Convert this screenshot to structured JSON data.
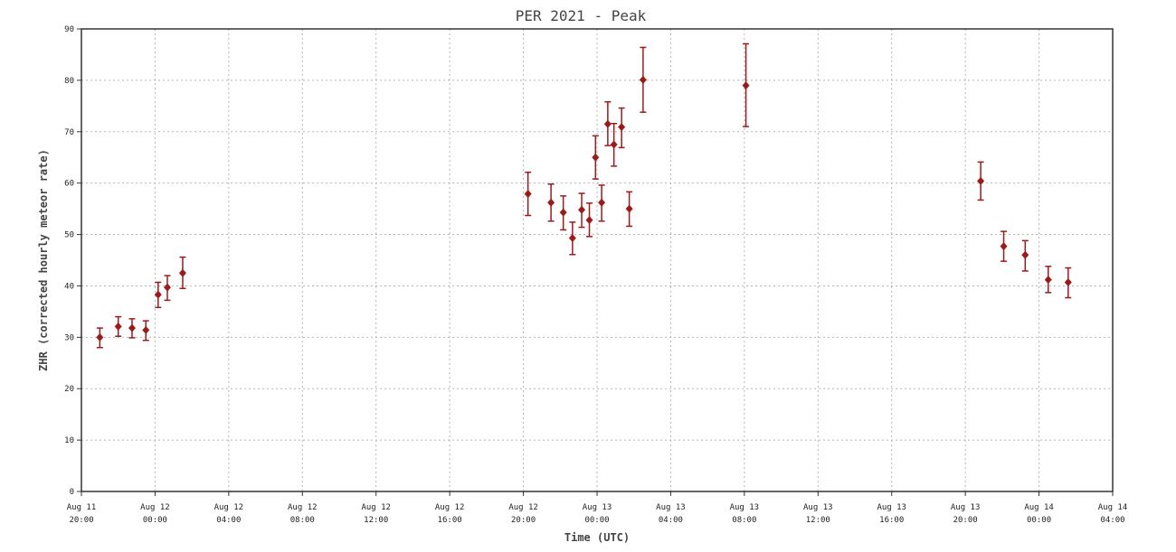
{
  "chart_data": {
    "type": "scatter",
    "title": "PER 2021 - Peak",
    "xlabel": "Time (UTC)",
    "ylabel": "ZHR (corrected hourly meteor rate)",
    "ylim": [
      0,
      90
    ],
    "yticks": [
      0,
      10,
      20,
      30,
      40,
      50,
      60,
      70,
      80,
      90
    ],
    "xlim": [
      "2021-08-11 20:00",
      "2021-08-14 04:00"
    ],
    "xticks": [
      {
        "time": "2021-08-11 20:00",
        "line1": "Aug 11",
        "line2": "20:00"
      },
      {
        "time": "2021-08-12 00:00",
        "line1": "Aug 12",
        "line2": "00:00"
      },
      {
        "time": "2021-08-12 04:00",
        "line1": "Aug 12",
        "line2": "04:00"
      },
      {
        "time": "2021-08-12 08:00",
        "line1": "Aug 12",
        "line2": "08:00"
      },
      {
        "time": "2021-08-12 12:00",
        "line1": "Aug 12",
        "line2": "12:00"
      },
      {
        "time": "2021-08-12 16:00",
        "line1": "Aug 12",
        "line2": "16:00"
      },
      {
        "time": "2021-08-12 20:00",
        "line1": "Aug 12",
        "line2": "20:00"
      },
      {
        "time": "2021-08-13 00:00",
        "line1": "Aug 13",
        "line2": "00:00"
      },
      {
        "time": "2021-08-13 04:00",
        "line1": "Aug 13",
        "line2": "04:00"
      },
      {
        "time": "2021-08-13 08:00",
        "line1": "Aug 13",
        "line2": "08:00"
      },
      {
        "time": "2021-08-13 12:00",
        "line1": "Aug 13",
        "line2": "12:00"
      },
      {
        "time": "2021-08-13 16:00",
        "line1": "Aug 13",
        "line2": "16:00"
      },
      {
        "time": "2021-08-13 20:00",
        "line1": "Aug 13",
        "line2": "20:00"
      },
      {
        "time": "2021-08-14 00:00",
        "line1": "Aug 14",
        "line2": "00:00"
      },
      {
        "time": "2021-08-14 04:00",
        "line1": "Aug 14",
        "line2": "04:00"
      }
    ],
    "grid": true,
    "marker_color": "#9b1b1b",
    "points": [
      {
        "time": "2021-08-11 21:00",
        "zhr": 30.0,
        "low": 28.0,
        "high": 31.8
      },
      {
        "time": "2021-08-11 22:00",
        "zhr": 32.1,
        "low": 30.2,
        "high": 34.0
      },
      {
        "time": "2021-08-11 22:45",
        "zhr": 31.8,
        "low": 29.9,
        "high": 33.6
      },
      {
        "time": "2021-08-11 23:30",
        "zhr": 31.4,
        "low": 29.4,
        "high": 33.2
      },
      {
        "time": "2021-08-12 00:10",
        "zhr": 38.3,
        "low": 35.8,
        "high": 40.7
      },
      {
        "time": "2021-08-12 00:40",
        "zhr": 39.7,
        "low": 37.2,
        "high": 42.0
      },
      {
        "time": "2021-08-12 01:30",
        "zhr": 42.5,
        "low": 39.5,
        "high": 45.6
      },
      {
        "time": "2021-08-12 20:15",
        "zhr": 57.9,
        "low": 53.7,
        "high": 62.1
      },
      {
        "time": "2021-08-12 21:30",
        "zhr": 56.2,
        "low": 52.6,
        "high": 59.8
      },
      {
        "time": "2021-08-12 22:10",
        "zhr": 54.3,
        "low": 50.9,
        "high": 57.5
      },
      {
        "time": "2021-08-12 22:40",
        "zhr": 49.3,
        "low": 46.1,
        "high": 52.4
      },
      {
        "time": "2021-08-12 23:10",
        "zhr": 54.8,
        "low": 51.4,
        "high": 58.0
      },
      {
        "time": "2021-08-12 23:35",
        "zhr": 52.8,
        "low": 49.6,
        "high": 56.1
      },
      {
        "time": "2021-08-12 23:55",
        "zhr": 65.0,
        "low": 60.8,
        "high": 69.2
      },
      {
        "time": "2021-08-13 00:15",
        "zhr": 56.2,
        "low": 52.6,
        "high": 59.6
      },
      {
        "time": "2021-08-13 00:35",
        "zhr": 71.5,
        "low": 67.3,
        "high": 75.8
      },
      {
        "time": "2021-08-13 00:55",
        "zhr": 67.5,
        "low": 63.3,
        "high": 71.6
      },
      {
        "time": "2021-08-13 01:20",
        "zhr": 70.9,
        "low": 66.9,
        "high": 74.6
      },
      {
        "time": "2021-08-13 01:45",
        "zhr": 55.0,
        "low": 51.6,
        "high": 58.3
      },
      {
        "time": "2021-08-13 02:30",
        "zhr": 80.1,
        "low": 73.8,
        "high": 86.4
      },
      {
        "time": "2021-08-13 08:05",
        "zhr": 79.0,
        "low": 71.0,
        "high": 87.1
      },
      {
        "time": "2021-08-13 20:50",
        "zhr": 60.4,
        "low": 56.7,
        "high": 64.1
      },
      {
        "time": "2021-08-13 22:05",
        "zhr": 47.7,
        "low": 44.8,
        "high": 50.6
      },
      {
        "time": "2021-08-13 23:15",
        "zhr": 46.0,
        "low": 42.9,
        "high": 48.8
      },
      {
        "time": "2021-08-14 00:30",
        "zhr": 41.2,
        "low": 38.7,
        "high": 43.8
      },
      {
        "time": "2021-08-14 01:35",
        "zhr": 40.7,
        "low": 37.7,
        "high": 43.5
      }
    ]
  }
}
